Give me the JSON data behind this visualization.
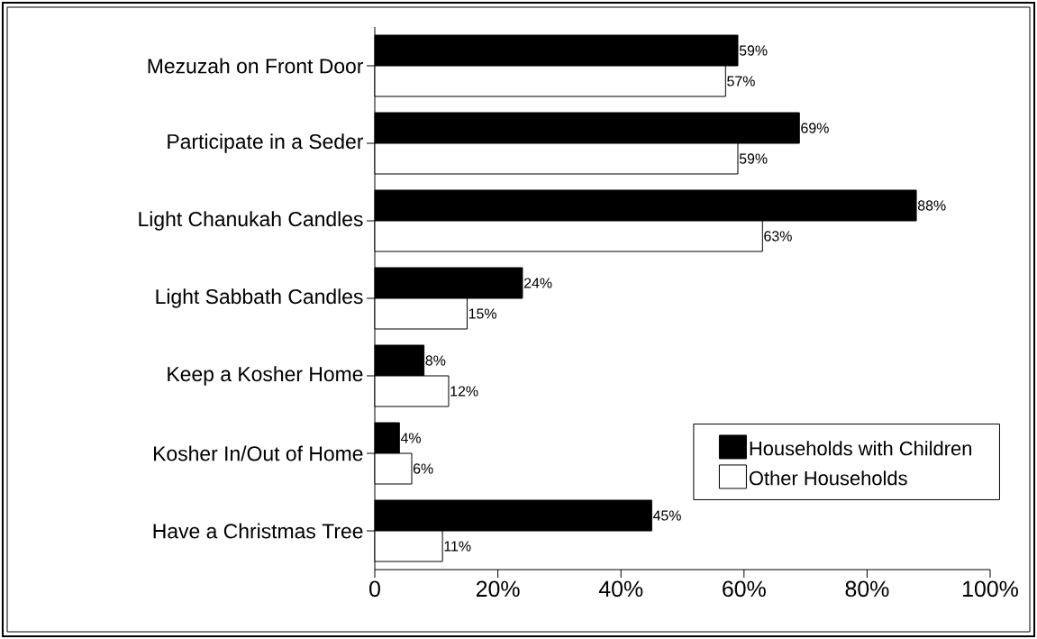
{
  "chart_data": {
    "type": "bar",
    "orientation": "horizontal",
    "categories": [
      "Mezuzah on Front Door",
      "Participate in a Seder",
      "Light Chanukah Candles",
      "Light Sabbath Candles",
      "Keep a Kosher Home",
      "Kosher In/Out of Home",
      "Have a Christmas Tree"
    ],
    "series": [
      {
        "name": "Households with Children",
        "color": "#000000",
        "values": [
          59,
          69,
          88,
          24,
          8,
          4,
          45
        ],
        "value_labels": [
          "59%",
          "69%",
          "88%",
          "24%",
          "8%",
          "4%",
          "45%"
        ]
      },
      {
        "name": "Other Households",
        "color": "#ffffff",
        "values": [
          57,
          59,
          63,
          15,
          12,
          6,
          11
        ],
        "value_labels": [
          "57%",
          "59%",
          "63%",
          "15%",
          "12%",
          "6%",
          "11%"
        ]
      }
    ],
    "xlim": [
      0,
      100
    ],
    "xticks": [
      0,
      {
        "value": 20,
        "label": "20%"
      },
      {
        "value": 40,
        "label": "40%"
      },
      {
        "value": 60,
        "label": "60%"
      },
      {
        "value": 80,
        "label": "80%"
      },
      {
        "value": 100,
        "label": "100%"
      }
    ],
    "legend": "bottom right"
  }
}
